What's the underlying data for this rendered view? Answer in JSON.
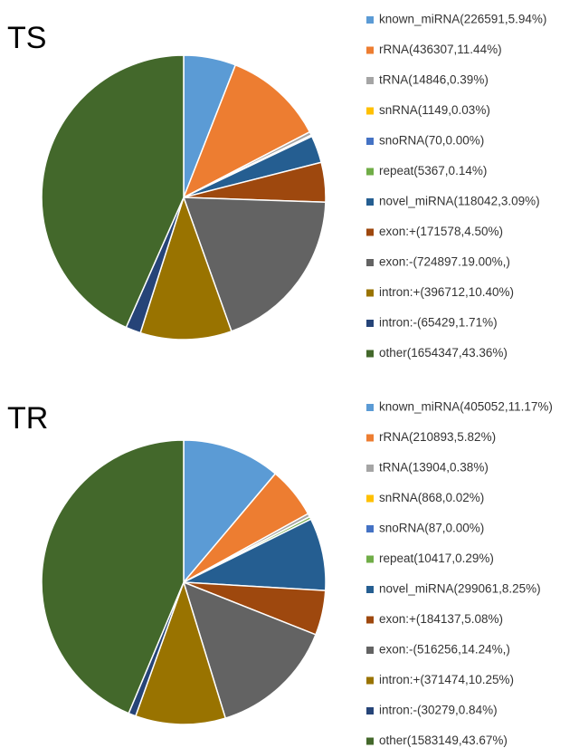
{
  "chart_data": [
    {
      "type": "pie",
      "title": "TS",
      "categories": [
        "known_miRNA(226591,5.94%)",
        "rRNA(436307,11.44%)",
        "tRNA(14846,0.39%)",
        "snRNA(1149,0.03%)",
        "snoRNA(70,0.00%)",
        "repeat(5367,0.14%)",
        "novel_miRNA(118042,3.09%)",
        "exon:+(171578,4.50%)",
        "exon:-(724897.19.00%,)",
        "intron:+(396712,10.40%)",
        "intron:-(65429,1.71%)",
        "other(1654347,43.36%)"
      ],
      "values": [
        5.94,
        11.44,
        0.39,
        0.03,
        0.0,
        0.14,
        3.09,
        4.5,
        19.0,
        10.4,
        1.71,
        43.36
      ],
      "colors": [
        "#5b9bd5",
        "#ed7d31",
        "#a5a5a5",
        "#ffc000",
        "#4472c4",
        "#70ad47",
        "#255e91",
        "#9e480e",
        "#636363",
        "#997300",
        "#264478",
        "#43682b"
      ]
    },
    {
      "type": "pie",
      "title": "TR",
      "categories": [
        "known_miRNA(405052,11.17%)",
        "rRNA(210893,5.82%)",
        "tRNA(13904,0.38%)",
        "snRNA(868,0.02%)",
        "snoRNA(87,0.00%)",
        "repeat(10417,0.29%)",
        "novel_miRNA(299061,8.25%)",
        "exon:+(184137,5.08%)",
        "exon:-(516256,14.24%,)",
        "intron:+(371474,10.25%)",
        "intron:-(30279,0.84%)",
        "other(1583149,43.67%)"
      ],
      "values": [
        11.17,
        5.82,
        0.38,
        0.02,
        0.0,
        0.29,
        8.25,
        5.08,
        14.24,
        10.25,
        0.84,
        43.67
      ],
      "colors": [
        "#5b9bd5",
        "#ed7d31",
        "#a5a5a5",
        "#ffc000",
        "#4472c4",
        "#70ad47",
        "#255e91",
        "#9e480e",
        "#636363",
        "#997300",
        "#264478",
        "#43682b"
      ]
    }
  ]
}
